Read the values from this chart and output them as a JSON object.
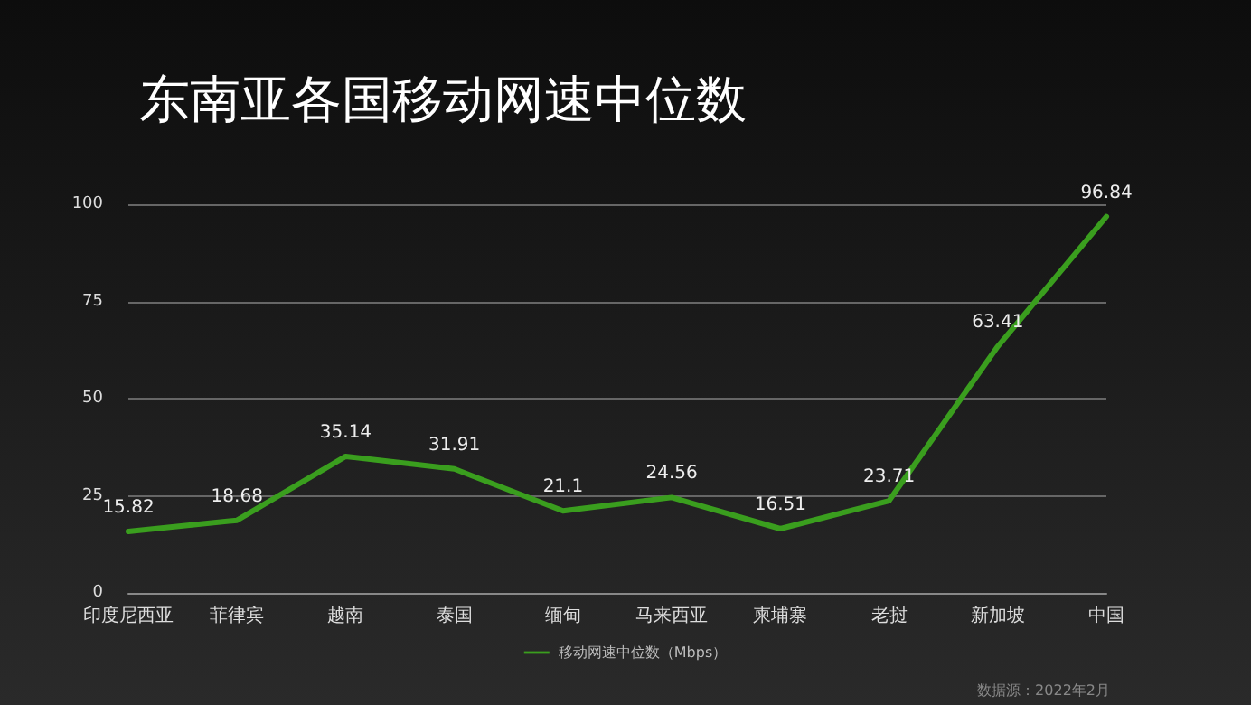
{
  "chart_data": {
    "type": "line",
    "title": "东南亚各国移动网速中位数",
    "categories": [
      "印度尼西亚",
      "菲律宾",
      "越南",
      "泰国",
      "缅甸",
      "马来西亚",
      "柬埔寨",
      "老挝",
      "新加坡",
      "中国"
    ],
    "series": [
      {
        "name": "移动网速中位数（Mbps）",
        "color": "#3a9e1e",
        "values": [
          15.82,
          18.68,
          35.14,
          31.91,
          21.1,
          24.56,
          16.51,
          23.71,
          63.41,
          96.84
        ]
      }
    ],
    "ylim": [
      0,
      100
    ],
    "yticks": [
      0,
      25,
      50,
      75,
      100
    ],
    "grid": "y",
    "legend": "bottom",
    "data_labels": true,
    "marker": "none",
    "line_style": "solid",
    "annotations": [
      "数据源：2022年2月"
    ]
  }
}
